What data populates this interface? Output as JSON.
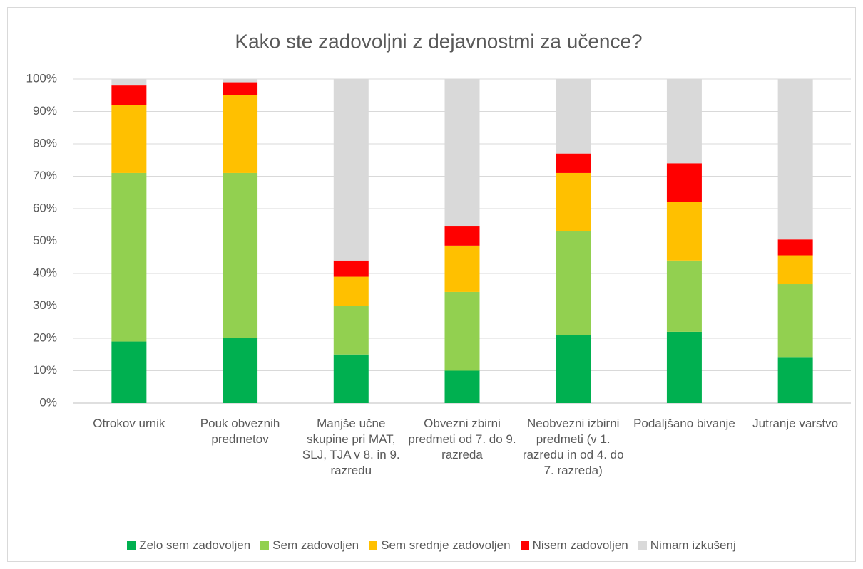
{
  "chart_data": {
    "type": "stacked_bar",
    "title": "Kako ste zadovoljni z dejavnostmi za učence?",
    "categories": [
      "Otrokov urnik",
      "Pouk obveznih predmetov",
      "Manjše učne skupine pri MAT, SLJ, TJA v 8. in 9. razredu",
      "Obvezni zbirni predmeti od 7. do 9. razreda",
      "Neobvezni izbirni predmeti (v 1. razredu in od 4. do 7. razreda)",
      "Podaljšano bivanje",
      "Jutranje varstvo"
    ],
    "series": [
      {
        "name": "Zelo sem zadovoljen",
        "color": "#00b050",
        "values": [
          19,
          20,
          15,
          10,
          21,
          22,
          14
        ]
      },
      {
        "name": "Sem zadovoljen",
        "color": "#92d050",
        "values": [
          52,
          51,
          15,
          24.3,
          32,
          22,
          22.7
        ]
      },
      {
        "name": "Sem srednje zadovoljen",
        "color": "#ffc000",
        "values": [
          21,
          24,
          9,
          14.3,
          18,
          18,
          8.9
        ]
      },
      {
        "name": "Nisem zadovoljen",
        "color": "#ff0000",
        "values": [
          6,
          4,
          5,
          5.9,
          6,
          12,
          4.9
        ]
      },
      {
        "name": "Nimam izkušenj",
        "color": "#d9d9d9",
        "values": [
          2,
          1,
          56,
          45.5,
          23,
          26,
          49.5
        ]
      }
    ],
    "ylim": [
      0,
      100
    ],
    "yticks": [
      {
        "value": 0,
        "label": "0%"
      },
      {
        "value": 10,
        "label": "10%"
      },
      {
        "value": 20,
        "label": "20%"
      },
      {
        "value": 30,
        "label": "30%"
      },
      {
        "value": 40,
        "label": "40%"
      },
      {
        "value": 50,
        "label": "50%"
      },
      {
        "value": 60,
        "label": "60%"
      },
      {
        "value": 70,
        "label": "70%"
      },
      {
        "value": 80,
        "label": "80%"
      },
      {
        "value": 90,
        "label": "90%"
      },
      {
        "value": 100,
        "label": "100%"
      }
    ],
    "grid": true,
    "legend": "bottom"
  }
}
